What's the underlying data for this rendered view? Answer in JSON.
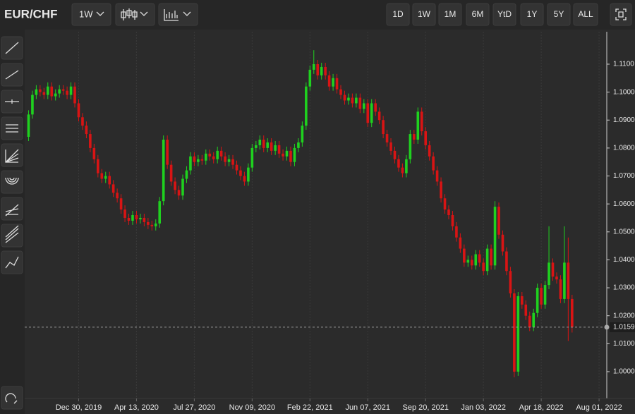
{
  "toolbar": {
    "symbol": "EUR/CHF",
    "interval": "1W",
    "ranges": [
      "1D",
      "1W",
      "1M",
      "6M",
      "YtD",
      "1Y",
      "5Y",
      "ALL"
    ]
  },
  "chart_data": {
    "type": "candlestick",
    "x": [
      "2019-09-30",
      "2019-10-07",
      "2019-10-14",
      "2019-10-21",
      "2019-10-28",
      "2019-11-04",
      "2019-11-11",
      "2019-11-18",
      "2019-11-25",
      "2019-12-02",
      "2019-12-09",
      "2019-12-16",
      "2019-12-23",
      "2019-12-30",
      "2020-01-06",
      "2020-01-13",
      "2020-01-20",
      "2020-01-27",
      "2020-02-03",
      "2020-02-10",
      "2020-02-17",
      "2020-02-24",
      "2020-03-02",
      "2020-03-09",
      "2020-03-16",
      "2020-03-23",
      "2020-03-30",
      "2020-04-06",
      "2020-04-13",
      "2020-04-20",
      "2020-04-27",
      "2020-05-04",
      "2020-05-11",
      "2020-05-18",
      "2020-05-25",
      "2020-06-01",
      "2020-06-08",
      "2020-06-15",
      "2020-06-22",
      "2020-06-29",
      "2020-07-06",
      "2020-07-13",
      "2020-07-20",
      "2020-07-27",
      "2020-08-03",
      "2020-08-10",
      "2020-08-17",
      "2020-08-24",
      "2020-08-31",
      "2020-09-07",
      "2020-09-14",
      "2020-09-21",
      "2020-09-28",
      "2020-10-05",
      "2020-10-12",
      "2020-10-19",
      "2020-10-26",
      "2020-11-02",
      "2020-11-09",
      "2020-11-16",
      "2020-11-23",
      "2020-11-30",
      "2020-12-07",
      "2020-12-14",
      "2020-12-21",
      "2020-12-28",
      "2021-01-04",
      "2021-01-11",
      "2021-01-18",
      "2021-01-25",
      "2021-02-01",
      "2021-02-08",
      "2021-02-15",
      "2021-02-22",
      "2021-03-01",
      "2021-03-08",
      "2021-03-15",
      "2021-03-22",
      "2021-03-29",
      "2021-04-05",
      "2021-04-12",
      "2021-04-19",
      "2021-04-26",
      "2021-05-03",
      "2021-05-10",
      "2021-05-17",
      "2021-05-24",
      "2021-05-31",
      "2021-06-07",
      "2021-06-14",
      "2021-06-21",
      "2021-06-28",
      "2021-07-05",
      "2021-07-12",
      "2021-07-19",
      "2021-07-26",
      "2021-08-02",
      "2021-08-09",
      "2021-08-16",
      "2021-08-23",
      "2021-08-30",
      "2021-09-06",
      "2021-09-13",
      "2021-09-20",
      "2021-09-27",
      "2021-10-04",
      "2021-10-11",
      "2021-10-18",
      "2021-10-25",
      "2021-11-01",
      "2021-11-08",
      "2021-11-15",
      "2021-11-22",
      "2021-11-29",
      "2021-12-06",
      "2021-12-13",
      "2021-12-20",
      "2021-12-27",
      "2022-01-03",
      "2022-01-10",
      "2022-01-17",
      "2022-01-24",
      "2022-01-31",
      "2022-02-07",
      "2022-02-14",
      "2022-02-21",
      "2022-02-28",
      "2022-03-07",
      "2022-03-14",
      "2022-03-21",
      "2022-03-28",
      "2022-04-04",
      "2022-04-11",
      "2022-04-18",
      "2022-04-25",
      "2022-05-02",
      "2022-05-09",
      "2022-05-16",
      "2022-05-23",
      "2022-05-30",
      "2022-06-06",
      "2022-06-13"
    ],
    "open": [
      1.084,
      1.092,
      1.099,
      1.101,
      1.1,
      1.099,
      1.102,
      1.0985,
      1.0995,
      1.101,
      1.1005,
      1.099,
      1.102,
      1.096,
      1.091,
      1.088,
      1.085,
      1.08,
      1.076,
      1.071,
      1.069,
      1.07,
      1.067,
      1.064,
      1.062,
      1.058,
      1.055,
      1.054,
      1.056,
      1.0545,
      1.055,
      1.0535,
      1.0525,
      1.052,
      1.053,
      1.061,
      1.083,
      1.074,
      1.068,
      1.065,
      1.063,
      1.069,
      1.072,
      1.077,
      1.075,
      1.076,
      1.0755,
      1.078,
      1.077,
      1.076,
      1.079,
      1.077,
      1.075,
      1.076,
      1.074,
      1.072,
      1.07,
      1.068,
      1.073,
      1.08,
      1.081,
      1.083,
      1.08,
      1.082,
      1.079,
      1.081,
      1.078,
      1.077,
      1.079,
      1.075,
      1.08,
      1.082,
      1.088,
      1.102,
      1.108,
      1.11,
      1.106,
      1.109,
      1.106,
      1.102,
      1.105,
      1.101,
      1.099,
      1.097,
      1.098,
      1.096,
      1.098,
      1.094,
      1.096,
      1.089,
      1.096,
      1.093,
      1.09,
      1.085,
      1.082,
      1.079,
      1.076,
      1.073,
      1.071,
      1.076,
      1.085,
      1.083,
      1.093,
      1.086,
      1.081,
      1.077,
      1.072,
      1.068,
      1.062,
      1.058,
      1.056,
      1.052,
      1.048,
      1.044,
      1.039,
      1.04,
      1.038,
      1.042,
      1.039,
      1.036,
      1.044,
      1.038,
      1.059,
      1.049,
      1.043,
      1.036,
      1.028,
      1.0,
      1.027,
      1.024,
      1.02,
      1.016,
      1.021,
      1.03,
      1.024,
      1.031,
      1.039,
      1.034,
      1.033,
      1.026,
      1.039,
      1.026
    ],
    "high": [
      1.0935,
      1.1005,
      1.1025,
      1.1025,
      1.1015,
      1.1035,
      1.1035,
      1.101,
      1.1025,
      1.1025,
      1.102,
      1.1035,
      1.1035,
      1.0975,
      1.0925,
      1.0895,
      1.0865,
      1.0815,
      1.0775,
      1.0725,
      1.0715,
      1.0715,
      1.0685,
      1.0655,
      1.0635,
      1.0595,
      1.0565,
      1.0575,
      1.0575,
      1.0565,
      1.0565,
      1.055,
      1.054,
      1.0545,
      1.0625,
      1.0845,
      1.0845,
      1.0755,
      1.0695,
      1.0665,
      1.0705,
      1.0735,
      1.0785,
      1.0785,
      1.0775,
      1.0775,
      1.0795,
      1.0795,
      1.0785,
      1.0805,
      1.0805,
      1.0785,
      1.0775,
      1.0775,
      1.0755,
      1.0735,
      1.0715,
      1.0745,
      1.0815,
      1.0825,
      1.0845,
      1.0845,
      1.0835,
      1.0835,
      1.0825,
      1.0825,
      1.0795,
      1.0805,
      1.0805,
      1.0815,
      1.0835,
      1.0895,
      1.1035,
      1.1095,
      1.115,
      1.1115,
      1.1105,
      1.1105,
      1.1075,
      1.1065,
      1.1065,
      1.1025,
      1.1005,
      1.0995,
      1.0995,
      1.0995,
      1.0995,
      1.0975,
      1.0975,
      1.0975,
      1.0975,
      1.0945,
      1.0915,
      1.0865,
      1.0835,
      1.0805,
      1.0775,
      1.0745,
      1.0775,
      1.0865,
      1.0865,
      1.0945,
      1.0945,
      1.0875,
      1.0825,
      1.0785,
      1.0735,
      1.0695,
      1.0635,
      1.0595,
      1.0575,
      1.0535,
      1.0495,
      1.0455,
      1.0415,
      1.0415,
      1.0435,
      1.0435,
      1.0405,
      1.0455,
      1.0455,
      1.061,
      1.0605,
      1.0505,
      1.0445,
      1.0375,
      1.0295,
      1.0285,
      1.0285,
      1.0255,
      1.0215,
      1.0225,
      1.0315,
      1.0315,
      1.0325,
      1.052,
      1.0405,
      1.0355,
      1.0345,
      1.052,
      1.048,
      1.0275
    ],
    "low": [
      1.0825,
      1.0905,
      1.0975,
      1.0985,
      1.0975,
      1.0975,
      1.097,
      1.097,
      1.098,
      1.099,
      1.0975,
      1.0975,
      1.0945,
      1.0895,
      1.0865,
      1.0835,
      1.0785,
      1.0745,
      1.0695,
      1.0675,
      1.0675,
      1.0655,
      1.0625,
      1.0605,
      1.0565,
      1.0535,
      1.0525,
      1.0525,
      1.053,
      1.053,
      1.052,
      1.051,
      1.0505,
      1.0505,
      1.0515,
      1.0595,
      1.0725,
      1.0665,
      1.0635,
      1.0615,
      1.0615,
      1.0675,
      1.0705,
      1.0735,
      1.0735,
      1.074,
      1.074,
      1.0755,
      1.0745,
      1.0745,
      1.0755,
      1.0735,
      1.0735,
      1.0725,
      1.0705,
      1.0685,
      1.0665,
      1.0665,
      1.0715,
      1.0785,
      1.0795,
      1.0785,
      1.0785,
      1.0775,
      1.0775,
      1.0765,
      1.0755,
      1.0755,
      1.0735,
      1.0735,
      1.0785,
      1.0805,
      1.0865,
      1.1005,
      1.1065,
      1.1045,
      1.1045,
      1.1045,
      1.1005,
      1.1005,
      1.0995,
      1.0975,
      1.0955,
      1.0955,
      1.0945,
      1.0945,
      1.0925,
      1.0925,
      1.0875,
      1.0875,
      1.0915,
      1.0885,
      1.0835,
      1.0805,
      1.0775,
      1.0745,
      1.0715,
      1.0695,
      1.0695,
      1.0745,
      1.0815,
      1.0815,
      1.0845,
      1.0795,
      1.0755,
      1.0705,
      1.0665,
      1.0605,
      1.0565,
      1.0545,
      1.0505,
      1.0465,
      1.0425,
      1.0375,
      1.0375,
      1.0365,
      1.0365,
      1.0375,
      1.0345,
      1.0345,
      1.0365,
      1.0365,
      1.0475,
      1.0415,
      1.0345,
      1.0265,
      0.998,
      0.9985,
      1.0225,
      1.0185,
      1.0145,
      1.0145,
      1.0195,
      1.0225,
      1.0225,
      1.0295,
      1.0325,
      1.0315,
      1.0245,
      1.0245,
      1.011,
      1.014
    ],
    "close": [
      1.092,
      1.099,
      1.101,
      1.1,
      1.099,
      1.102,
      1.0985,
      1.0995,
      1.101,
      1.1005,
      1.099,
      1.102,
      1.096,
      1.091,
      1.088,
      1.085,
      1.08,
      1.076,
      1.071,
      1.069,
      1.07,
      1.067,
      1.064,
      1.062,
      1.058,
      1.055,
      1.054,
      1.056,
      1.0545,
      1.055,
      1.0535,
      1.0525,
      1.052,
      1.053,
      1.061,
      1.083,
      1.074,
      1.068,
      1.065,
      1.063,
      1.069,
      1.072,
      1.077,
      1.075,
      1.076,
      1.0755,
      1.078,
      1.077,
      1.076,
      1.079,
      1.077,
      1.075,
      1.076,
      1.074,
      1.072,
      1.07,
      1.068,
      1.073,
      1.08,
      1.081,
      1.083,
      1.08,
      1.082,
      1.079,
      1.081,
      1.078,
      1.077,
      1.079,
      1.075,
      1.08,
      1.082,
      1.088,
      1.102,
      1.108,
      1.11,
      1.106,
      1.109,
      1.106,
      1.102,
      1.105,
      1.101,
      1.099,
      1.097,
      1.098,
      1.096,
      1.098,
      1.094,
      1.096,
      1.089,
      1.096,
      1.093,
      1.09,
      1.085,
      1.082,
      1.079,
      1.076,
      1.073,
      1.071,
      1.076,
      1.085,
      1.083,
      1.093,
      1.086,
      1.081,
      1.077,
      1.072,
      1.068,
      1.062,
      1.058,
      1.056,
      1.052,
      1.048,
      1.044,
      1.039,
      1.04,
      1.038,
      1.042,
      1.039,
      1.036,
      1.044,
      1.038,
      1.059,
      1.049,
      1.043,
      1.036,
      1.028,
      1.0,
      1.027,
      1.024,
      1.02,
      1.016,
      1.021,
      1.03,
      1.024,
      1.031,
      1.039,
      1.034,
      1.033,
      1.026,
      1.039,
      1.026,
      1.0159
    ],
    "up_color": "#1fd11f",
    "down_color": "#d91414",
    "xlim": [
      "2019-09-23",
      "2022-08-15"
    ],
    "xticks": [
      {
        "value": "2019-12-30",
        "label": "Dec 30, 2019"
      },
      {
        "value": "2020-04-13",
        "label": "Apr 13, 2020"
      },
      {
        "value": "2020-07-27",
        "label": "Jul 27, 2020"
      },
      {
        "value": "2020-11-09",
        "label": "Nov 09, 2020"
      },
      {
        "value": "2021-02-22",
        "label": "Feb 22, 2021"
      },
      {
        "value": "2021-06-07",
        "label": "Jun 07, 2021"
      },
      {
        "value": "2021-09-20",
        "label": "Sep 20, 2021"
      },
      {
        "value": "2022-01-03",
        "label": "Jan 03, 2022"
      },
      {
        "value": "2022-04-18",
        "label": "Apr 18, 2022"
      },
      {
        "value": "2022-08-01",
        "label": "Aug 01, 2022"
      }
    ],
    "ylim": [
      0.9904,
      1.1216
    ],
    "yticks": [
      {
        "value": 1.0,
        "label": "1.0000"
      },
      {
        "value": 1.01,
        "label": "1.0100"
      },
      {
        "value": 1.02,
        "label": "1.0200"
      },
      {
        "value": 1.03,
        "label": "1.0300"
      },
      {
        "value": 1.04,
        "label": "1.0400"
      },
      {
        "value": 1.05,
        "label": "1.0500"
      },
      {
        "value": 1.06,
        "label": "1.0600"
      },
      {
        "value": 1.07,
        "label": "1.0700"
      },
      {
        "value": 1.08,
        "label": "1.0800"
      },
      {
        "value": 1.09,
        "label": "1.0900"
      },
      {
        "value": 1.1,
        "label": "1.1000"
      },
      {
        "value": 1.11,
        "label": "1.1100"
      }
    ],
    "last_price": {
      "value": 1.0159,
      "label": "1.0159"
    },
    "grid": true
  }
}
